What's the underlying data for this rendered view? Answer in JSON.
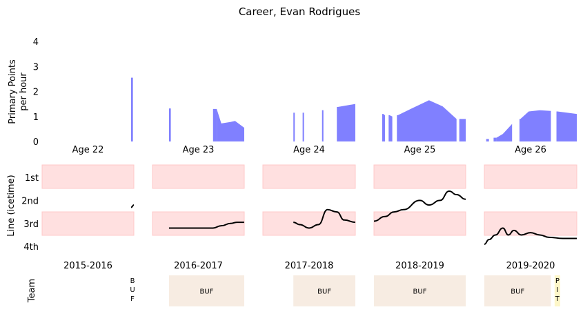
{
  "chart_data": {
    "type": "area",
    "title": "Career, Evan Rodrigues",
    "panels": {
      "points": {
        "ylabel_line1": "Primary Points",
        "ylabel_line2": "per hour",
        "ylim": [
          0,
          4.5
        ],
        "yticks": [
          "0",
          "1",
          "2",
          "3",
          "4"
        ],
        "color": "#8080ff"
      },
      "line": {
        "ylabel": "Line (icetime)",
        "yticks": [
          "1st",
          "2nd",
          "3rd",
          "4th"
        ],
        "band_color": "#ffe0e0"
      },
      "team": {
        "ylabel": "Team"
      }
    },
    "ages": [
      "Age 22",
      "Age 23",
      "Age 24",
      "Age 25",
      "Age 26"
    ],
    "seasons": [
      "2015-2016",
      "2016-2017",
      "2017-2018",
      "2018-2019",
      "2019-2020"
    ],
    "points_series": [
      [
        [
          0.97,
          0.99,
          2.55
        ]
      ],
      [
        [
          0.18,
          0.2,
          1.32
        ],
        [
          0.66,
          0.7,
          1.3
        ],
        [
          0.75,
          0.72
        ],
        [
          0.85,
          0.78
        ],
        [
          0.9,
          0.82
        ],
        [
          1.0,
          0.55
        ]
      ],
      [
        [
          0.33,
          0.34,
          1.15
        ],
        [
          0.43,
          0.44,
          1.15
        ],
        [
          0.64,
          0.65,
          1.25
        ],
        [
          0.8,
          0.81,
          1.38
        ],
        [
          1.0,
          1.5
        ]
      ],
      [
        [
          0.0,
          1.1
        ],
        [
          0.09,
          0.1,
          1.1
        ],
        [
          0.12,
          1.05
        ],
        [
          0.16,
          0.17,
          1.05
        ],
        [
          0.2,
          1.0
        ],
        [
          0.25,
          0.26,
          1.05
        ],
        [
          0.4,
          1.3
        ],
        [
          0.6,
          1.65
        ],
        [
          0.75,
          1.4
        ],
        [
          0.9,
          0.9
        ],
        [
          0.93,
          0.94,
          0.9
        ],
        [
          1.0,
          0.9
        ]
      ],
      [
        [
          0.02,
          0.05,
          0.1
        ],
        [
          0.1,
          0.13,
          0.15
        ],
        [
          0.2,
          0.3
        ],
        [
          0.3,
          0.7
        ],
        [
          0.38,
          0.39,
          0.9
        ],
        [
          0.48,
          1.2
        ],
        [
          0.6,
          1.25
        ],
        [
          0.72,
          1.22
        ],
        [
          0.78,
          0.79,
          1.2
        ],
        [
          0.9,
          1.15
        ],
        [
          1.0,
          1.1
        ]
      ]
    ],
    "line_series": [
      [
        [
          0.97,
          2.3
        ],
        [
          1.0,
          2.2
        ]
      ],
      [
        [
          0.18,
          3.2
        ],
        [
          0.22,
          3.2
        ],
        [
          0.66,
          3.2
        ],
        [
          0.75,
          3.1
        ],
        [
          0.85,
          3.0
        ],
        [
          0.92,
          2.95
        ],
        [
          1.0,
          2.95
        ]
      ],
      [
        [
          0.33,
          2.95
        ],
        [
          0.4,
          3.05
        ],
        [
          0.5,
          3.2
        ],
        [
          0.6,
          3.05
        ],
        [
          0.7,
          2.4
        ],
        [
          0.8,
          2.5
        ],
        [
          0.88,
          2.85
        ],
        [
          1.0,
          2.95
        ]
      ],
      [
        [
          0.0,
          2.9
        ],
        [
          0.12,
          2.7
        ],
        [
          0.22,
          2.5
        ],
        [
          0.32,
          2.4
        ],
        [
          0.5,
          2.0
        ],
        [
          0.6,
          2.2
        ],
        [
          0.72,
          2.0
        ],
        [
          0.82,
          1.6
        ],
        [
          0.9,
          1.75
        ],
        [
          1.0,
          1.95
        ]
      ],
      [
        [
          0.0,
          3.9
        ],
        [
          0.05,
          3.7
        ],
        [
          0.12,
          3.5
        ],
        [
          0.2,
          3.2
        ],
        [
          0.26,
          3.5
        ],
        [
          0.32,
          3.3
        ],
        [
          0.4,
          3.5
        ],
        [
          0.5,
          3.4
        ],
        [
          0.6,
          3.5
        ],
        [
          0.7,
          3.6
        ],
        [
          0.85,
          3.65
        ],
        [
          1.0,
          3.65
        ]
      ]
    ],
    "teams": [
      [
        {
          "team": "BUF",
          "start": 0.97,
          "end": 1.0,
          "stacked": true
        }
      ],
      [
        {
          "team": "BUF",
          "start": 0.18,
          "end": 1.0,
          "stacked": false
        }
      ],
      [
        {
          "team": "BUF",
          "start": 0.33,
          "end": 1.0,
          "stacked": false
        }
      ],
      [
        {
          "team": "BUF",
          "start": 0.0,
          "end": 1.0,
          "stacked": false
        }
      ],
      [
        {
          "team": "BUF",
          "start": 0.0,
          "end": 0.72,
          "stacked": false
        },
        {
          "team": "PIT",
          "start": 0.76,
          "end": 0.82,
          "stacked": true
        }
      ]
    ],
    "team_colors": {
      "BUF": "#f7ece2",
      "PIT": "#fdf6c8"
    }
  }
}
